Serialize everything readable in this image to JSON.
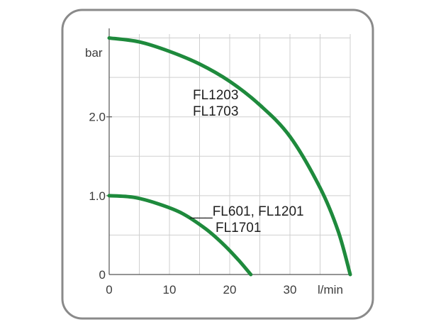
{
  "chart_data": {
    "type": "line",
    "title": "",
    "xlabel": "l/min",
    "ylabel": "bar",
    "xlim": [
      0,
      40
    ],
    "ylim": [
      0,
      3.05
    ],
    "x_ticks": [
      0,
      10,
      20,
      30
    ],
    "x_tick_labels": [
      "0",
      "10",
      "20",
      "30"
    ],
    "y_ticks": [
      0,
      1.0,
      2.0
    ],
    "y_tick_labels": [
      "0",
      "1.0",
      "2.0"
    ],
    "grid": true,
    "series": [
      {
        "label_lines": [
          "FL1203",
          "FL1703"
        ],
        "color": "#1e8a3c",
        "x": [
          0,
          5,
          10,
          15,
          20,
          25,
          30,
          35,
          38,
          40
        ],
        "y": [
          3.0,
          2.95,
          2.83,
          2.67,
          2.45,
          2.15,
          1.75,
          1.1,
          0.55,
          0.0
        ]
      },
      {
        "label_lines": [
          "___FL601, FL1201",
          "FL1701"
        ],
        "color": "#1e8a3c",
        "x": [
          0,
          4,
          8,
          12,
          16,
          19,
          21.5,
          23.5
        ],
        "y": [
          1.0,
          0.98,
          0.9,
          0.78,
          0.58,
          0.38,
          0.18,
          0.0
        ]
      }
    ]
  }
}
